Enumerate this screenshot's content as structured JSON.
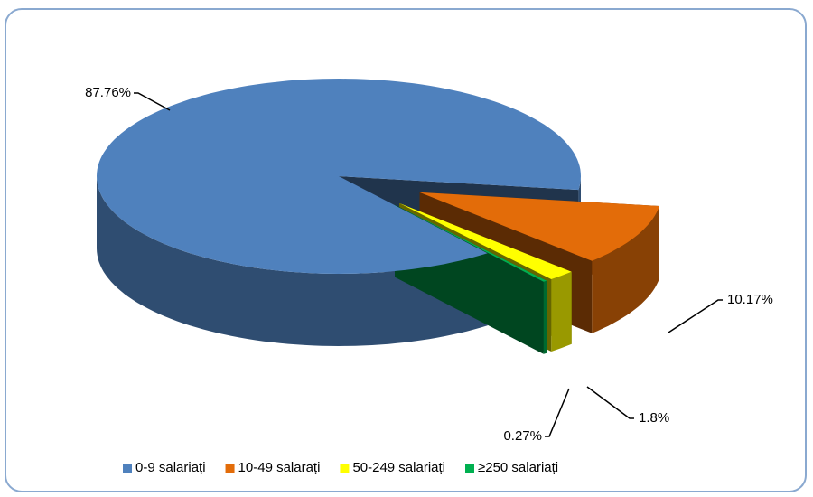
{
  "chart_data": {
    "type": "pie3d",
    "categories": [
      "0-9 salariați",
      "10-49 salarați",
      "50-249 salariați",
      "≥250 salariați"
    ],
    "values": [
      87.76,
      10.17,
      1.8,
      0.27
    ],
    "value_labels": [
      "87.76%",
      "10.17%",
      "1.8%",
      "0.27%"
    ],
    "colors": [
      "#4f81bd",
      "#e36c09",
      "#ffff00",
      "#00b050"
    ],
    "legend": "bottom"
  }
}
